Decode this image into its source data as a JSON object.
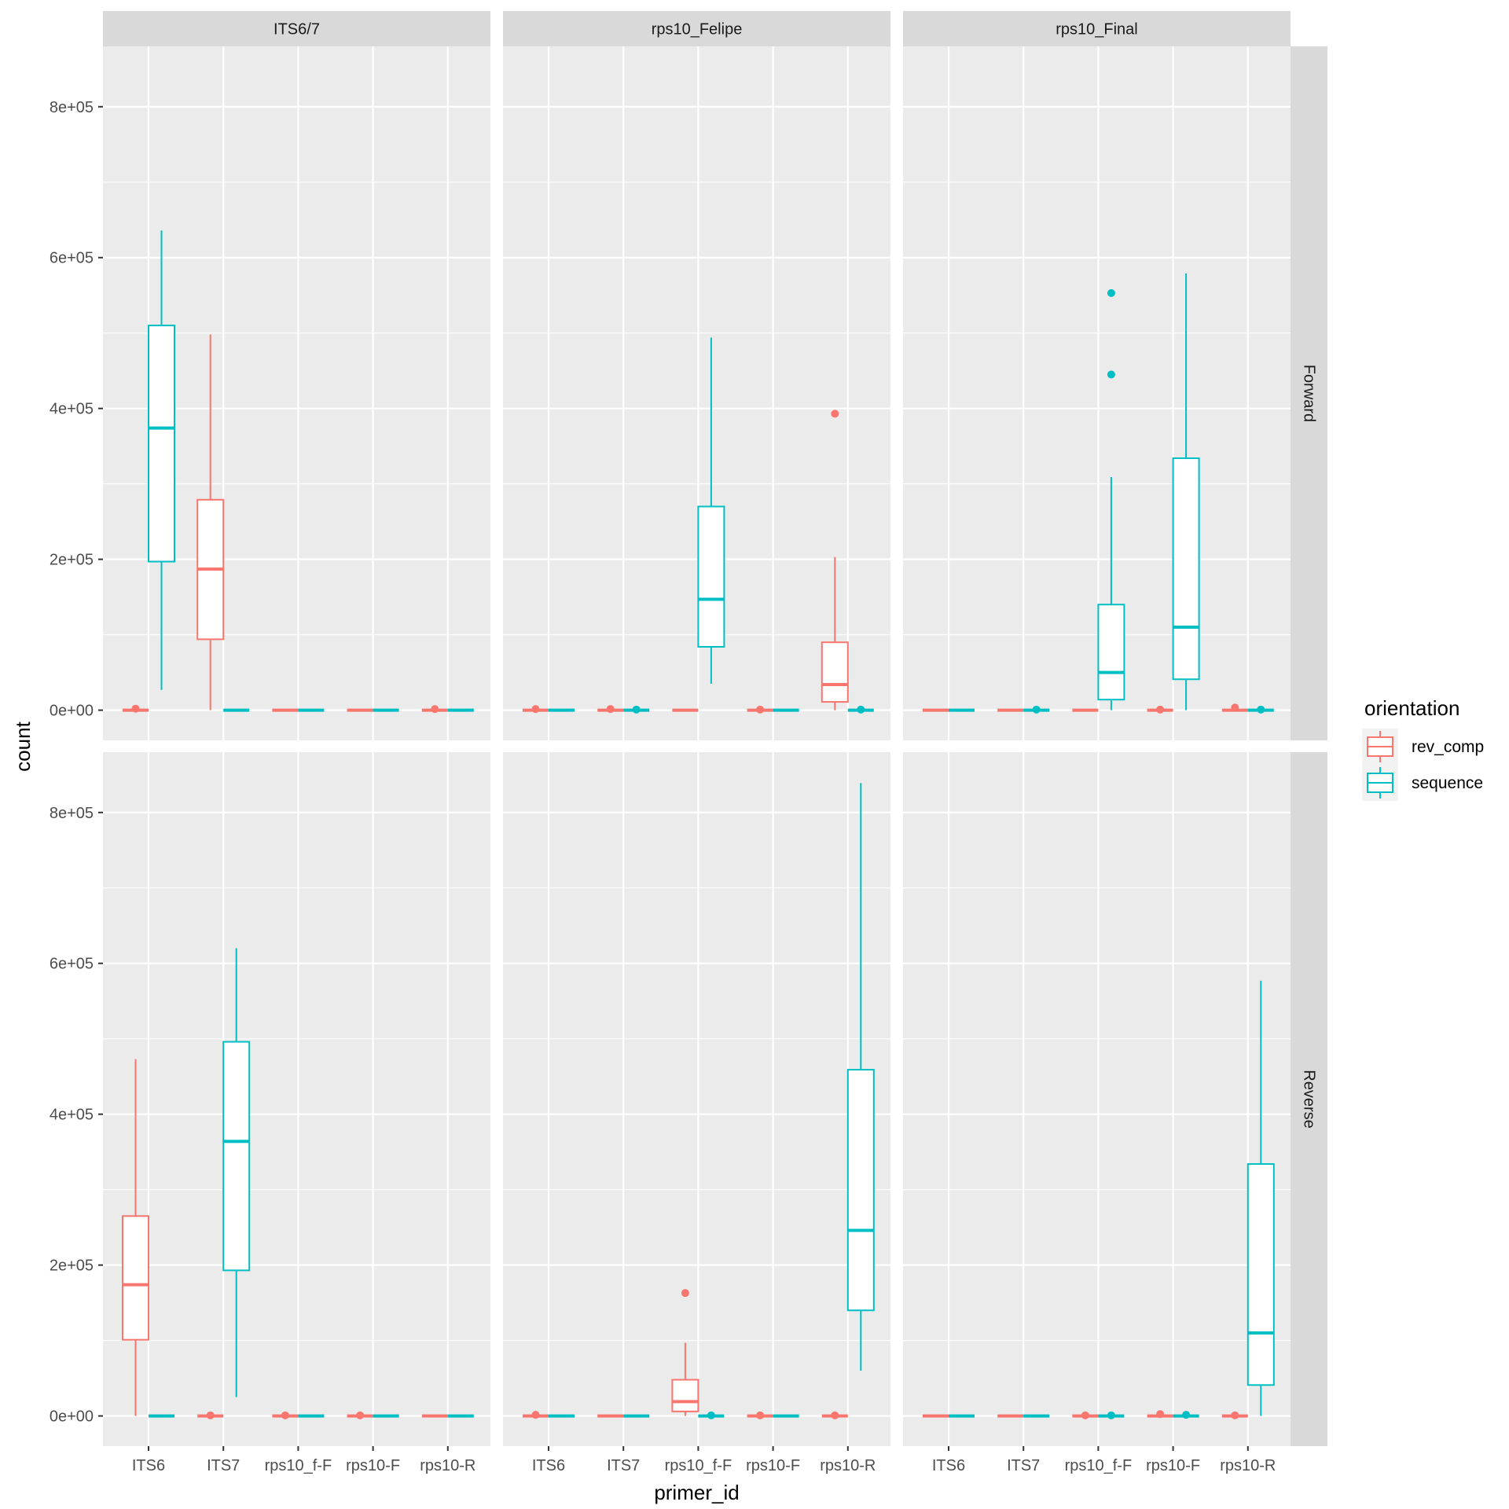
{
  "chart_data": {
    "type": "boxplot",
    "facet_columns": [
      "ITS6/7",
      "rps10_Felipe",
      "rps10_Final"
    ],
    "facet_rows": [
      "Forward",
      "Reverse"
    ],
    "categories": [
      "ITS6",
      "ITS7",
      "rps10_f-F",
      "rps10-F",
      "rps10-R"
    ],
    "xlabel": "primer_id",
    "ylabel": "count",
    "ylim": [
      -40000,
      880000
    ],
    "yticks": [
      0,
      200000,
      400000,
      600000,
      800000
    ],
    "ytick_labels": [
      "0e+00",
      "2e+05",
      "4e+05",
      "6e+05",
      "8e+05"
    ],
    "legend": {
      "title": "orientation",
      "position": "right",
      "entries": [
        {
          "label": "rev_comp",
          "color": "#F8766D"
        },
        {
          "label": "sequence",
          "color": "#00BFC4"
        }
      ]
    },
    "series_colors": {
      "rev_comp": "#F8766D",
      "sequence": "#00BFC4"
    },
    "panels": [
      {
        "col": "ITS6/7",
        "row": "Forward",
        "boxes": [
          {
            "category": "ITS6",
            "series": "rev_comp",
            "min": 0,
            "q1": 0,
            "median": 0,
            "q3": 0,
            "max": 0,
            "outliers": [
              2000
            ]
          },
          {
            "category": "ITS6",
            "series": "sequence",
            "min": 27000,
            "q1": 197000,
            "median": 374000,
            "q3": 510000,
            "max": 636000,
            "outliers": []
          },
          {
            "category": "ITS7",
            "series": "rev_comp",
            "min": 0,
            "q1": 94000,
            "median": 187000,
            "q3": 279000,
            "max": 498000,
            "outliers": []
          },
          {
            "category": "ITS7",
            "series": "sequence",
            "min": 0,
            "q1": 0,
            "median": 0,
            "q3": 0,
            "max": 0,
            "outliers": []
          },
          {
            "category": "rps10_f-F",
            "series": "rev_comp",
            "min": 0,
            "q1": 0,
            "median": 0,
            "q3": 0,
            "max": 0,
            "outliers": []
          },
          {
            "category": "rps10_f-F",
            "series": "sequence",
            "min": 0,
            "q1": 0,
            "median": 0,
            "q3": 0,
            "max": 0,
            "outliers": []
          },
          {
            "category": "rps10-F",
            "series": "rev_comp",
            "min": 0,
            "q1": 0,
            "median": 0,
            "q3": 0,
            "max": 0,
            "outliers": []
          },
          {
            "category": "rps10-F",
            "series": "sequence",
            "min": 0,
            "q1": 0,
            "median": 0,
            "q3": 0,
            "max": 0,
            "outliers": []
          },
          {
            "category": "rps10-R",
            "series": "rev_comp",
            "min": 0,
            "q1": 0,
            "median": 0,
            "q3": 0,
            "max": 0,
            "outliers": [
              1500
            ]
          },
          {
            "category": "rps10-R",
            "series": "sequence",
            "min": 0,
            "q1": 0,
            "median": 0,
            "q3": 0,
            "max": 0,
            "outliers": []
          }
        ]
      },
      {
        "col": "rps10_Felipe",
        "row": "Forward",
        "boxes": [
          {
            "category": "ITS6",
            "series": "rev_comp",
            "min": 0,
            "q1": 0,
            "median": 0,
            "q3": 0,
            "max": 0,
            "outliers": [
              1500
            ]
          },
          {
            "category": "ITS6",
            "series": "sequence",
            "min": 0,
            "q1": 0,
            "median": 0,
            "q3": 0,
            "max": 0,
            "outliers": []
          },
          {
            "category": "ITS7",
            "series": "rev_comp",
            "min": 0,
            "q1": 0,
            "median": 0,
            "q3": 0,
            "max": 0,
            "outliers": [
              1500
            ]
          },
          {
            "category": "ITS7",
            "series": "sequence",
            "min": 0,
            "q1": 0,
            "median": 0,
            "q3": 0,
            "max": 0,
            "outliers": [
              800
            ]
          },
          {
            "category": "rps10_f-F",
            "series": "rev_comp",
            "min": 0,
            "q1": 0,
            "median": 0,
            "q3": 0,
            "max": 0,
            "outliers": []
          },
          {
            "category": "rps10_f-F",
            "series": "sequence",
            "min": 35000,
            "q1": 84000,
            "median": 147000,
            "q3": 270000,
            "max": 494000,
            "outliers": []
          },
          {
            "category": "rps10-F",
            "series": "rev_comp",
            "min": 0,
            "q1": 0,
            "median": 0,
            "q3": 0,
            "max": 0,
            "outliers": [
              800
            ]
          },
          {
            "category": "rps10-F",
            "series": "sequence",
            "min": 0,
            "q1": 0,
            "median": 0,
            "q3": 0,
            "max": 0,
            "outliers": []
          },
          {
            "category": "rps10-R",
            "series": "rev_comp",
            "min": 0,
            "q1": 11000,
            "median": 34000,
            "q3": 90000,
            "max": 203000,
            "outliers": [
              393000
            ]
          },
          {
            "category": "rps10-R",
            "series": "sequence",
            "min": 0,
            "q1": 0,
            "median": 0,
            "q3": 0,
            "max": 0,
            "outliers": [
              800
            ]
          }
        ]
      },
      {
        "col": "rps10_Final",
        "row": "Forward",
        "boxes": [
          {
            "category": "ITS6",
            "series": "rev_comp",
            "min": 0,
            "q1": 0,
            "median": 0,
            "q3": 0,
            "max": 0,
            "outliers": []
          },
          {
            "category": "ITS6",
            "series": "sequence",
            "min": 0,
            "q1": 0,
            "median": 0,
            "q3": 0,
            "max": 0,
            "outliers": []
          },
          {
            "category": "ITS7",
            "series": "rev_comp",
            "min": 0,
            "q1": 0,
            "median": 0,
            "q3": 0,
            "max": 0,
            "outliers": []
          },
          {
            "category": "ITS7",
            "series": "sequence",
            "min": 0,
            "q1": 0,
            "median": 0,
            "q3": 0,
            "max": 0,
            "outliers": [
              800
            ]
          },
          {
            "category": "rps10_f-F",
            "series": "rev_comp",
            "min": 0,
            "q1": 0,
            "median": 0,
            "q3": 0,
            "max": 0,
            "outliers": []
          },
          {
            "category": "rps10_f-F",
            "series": "sequence",
            "min": 0,
            "q1": 14000,
            "median": 50000,
            "q3": 140000,
            "max": 309000,
            "outliers": [
              445000,
              553000
            ]
          },
          {
            "category": "rps10-F",
            "series": "rev_comp",
            "min": 0,
            "q1": 0,
            "median": 0,
            "q3": 0,
            "max": 0,
            "outliers": [
              800
            ]
          },
          {
            "category": "rps10-F",
            "series": "sequence",
            "min": 0,
            "q1": 41000,
            "median": 110000,
            "q3": 334000,
            "max": 579000,
            "outliers": []
          },
          {
            "category": "rps10-R",
            "series": "rev_comp",
            "min": 0,
            "q1": 0,
            "median": 0,
            "q3": 0,
            "max": 0,
            "outliers": [
              3500
            ]
          },
          {
            "category": "rps10-R",
            "series": "sequence",
            "min": 0,
            "q1": 0,
            "median": 0,
            "q3": 0,
            "max": 0,
            "outliers": [
              800
            ]
          }
        ]
      },
      {
        "col": "ITS6/7",
        "row": "Reverse",
        "boxes": [
          {
            "category": "ITS6",
            "series": "rev_comp",
            "min": 0,
            "q1": 101000,
            "median": 174000,
            "q3": 265000,
            "max": 473000,
            "outliers": []
          },
          {
            "category": "ITS6",
            "series": "sequence",
            "min": 0,
            "q1": 0,
            "median": 0,
            "q3": 0,
            "max": 0,
            "outliers": []
          },
          {
            "category": "ITS7",
            "series": "rev_comp",
            "min": 0,
            "q1": 0,
            "median": 0,
            "q3": 0,
            "max": 0,
            "outliers": [
              800
            ]
          },
          {
            "category": "ITS7",
            "series": "sequence",
            "min": 25000,
            "q1": 193000,
            "median": 364000,
            "q3": 496000,
            "max": 620000,
            "outliers": []
          },
          {
            "category": "rps10_f-F",
            "series": "rev_comp",
            "min": 0,
            "q1": 0,
            "median": 0,
            "q3": 0,
            "max": 0,
            "outliers": [
              800
            ]
          },
          {
            "category": "rps10_f-F",
            "series": "sequence",
            "min": 0,
            "q1": 0,
            "median": 0,
            "q3": 0,
            "max": 0,
            "outliers": []
          },
          {
            "category": "rps10-F",
            "series": "rev_comp",
            "min": 0,
            "q1": 0,
            "median": 0,
            "q3": 0,
            "max": 0,
            "outliers": [
              800
            ]
          },
          {
            "category": "rps10-F",
            "series": "sequence",
            "min": 0,
            "q1": 0,
            "median": 0,
            "q3": 0,
            "max": 0,
            "outliers": []
          },
          {
            "category": "rps10-R",
            "series": "rev_comp",
            "min": 0,
            "q1": 0,
            "median": 0,
            "q3": 0,
            "max": 0,
            "outliers": []
          },
          {
            "category": "rps10-R",
            "series": "sequence",
            "min": 0,
            "q1": 0,
            "median": 0,
            "q3": 0,
            "max": 0,
            "outliers": []
          }
        ]
      },
      {
        "col": "rps10_Felipe",
        "row": "Reverse",
        "boxes": [
          {
            "category": "ITS6",
            "series": "rev_comp",
            "min": 0,
            "q1": 0,
            "median": 0,
            "q3": 0,
            "max": 0,
            "outliers": [
              1500
            ]
          },
          {
            "category": "ITS6",
            "series": "sequence",
            "min": 0,
            "q1": 0,
            "median": 0,
            "q3": 0,
            "max": 0,
            "outliers": []
          },
          {
            "category": "ITS7",
            "series": "rev_comp",
            "min": 0,
            "q1": 0,
            "median": 0,
            "q3": 0,
            "max": 0,
            "outliers": []
          },
          {
            "category": "ITS7",
            "series": "sequence",
            "min": 0,
            "q1": 0,
            "median": 0,
            "q3": 0,
            "max": 0,
            "outliers": []
          },
          {
            "category": "rps10_f-F",
            "series": "rev_comp",
            "min": 0,
            "q1": 6000,
            "median": 19000,
            "q3": 48000,
            "max": 97000,
            "outliers": [
              163000
            ]
          },
          {
            "category": "rps10_f-F",
            "series": "sequence",
            "min": 0,
            "q1": 0,
            "median": 0,
            "q3": 0,
            "max": 0,
            "outliers": [
              800
            ]
          },
          {
            "category": "rps10-F",
            "series": "rev_comp",
            "min": 0,
            "q1": 0,
            "median": 0,
            "q3": 0,
            "max": 0,
            "outliers": [
              800
            ]
          },
          {
            "category": "rps10-F",
            "series": "sequence",
            "min": 0,
            "q1": 0,
            "median": 0,
            "q3": 0,
            "max": 0,
            "outliers": []
          },
          {
            "category": "rps10-R",
            "series": "rev_comp",
            "min": 0,
            "q1": 0,
            "median": 0,
            "q3": 0,
            "max": 0,
            "outliers": [
              800
            ]
          },
          {
            "category": "rps10-R",
            "series": "sequence",
            "min": 60000,
            "q1": 140000,
            "median": 246000,
            "q3": 459000,
            "max": 839000,
            "outliers": []
          }
        ]
      },
      {
        "col": "rps10_Final",
        "row": "Reverse",
        "boxes": [
          {
            "category": "ITS6",
            "series": "rev_comp",
            "min": 0,
            "q1": 0,
            "median": 0,
            "q3": 0,
            "max": 0,
            "outliers": []
          },
          {
            "category": "ITS6",
            "series": "sequence",
            "min": 0,
            "q1": 0,
            "median": 0,
            "q3": 0,
            "max": 0,
            "outliers": []
          },
          {
            "category": "ITS7",
            "series": "rev_comp",
            "min": 0,
            "q1": 0,
            "median": 0,
            "q3": 0,
            "max": 0,
            "outliers": []
          },
          {
            "category": "ITS7",
            "series": "sequence",
            "min": 0,
            "q1": 0,
            "median": 0,
            "q3": 0,
            "max": 0,
            "outliers": []
          },
          {
            "category": "rps10_f-F",
            "series": "rev_comp",
            "min": 0,
            "q1": 0,
            "median": 0,
            "q3": 0,
            "max": 0,
            "outliers": [
              800
            ]
          },
          {
            "category": "rps10_f-F",
            "series": "sequence",
            "min": 0,
            "q1": 0,
            "median": 0,
            "q3": 0,
            "max": 0,
            "outliers": [
              800
            ]
          },
          {
            "category": "rps10-F",
            "series": "rev_comp",
            "min": 0,
            "q1": 0,
            "median": 0,
            "q3": 0,
            "max": 0,
            "outliers": [
              2500
            ]
          },
          {
            "category": "rps10-F",
            "series": "sequence",
            "min": 0,
            "q1": 0,
            "median": 0,
            "q3": 0,
            "max": 0,
            "outliers": [
              1500
            ]
          },
          {
            "category": "rps10-R",
            "series": "rev_comp",
            "min": 0,
            "q1": 0,
            "median": 0,
            "q3": 0,
            "max": 0,
            "outliers": [
              800
            ]
          },
          {
            "category": "rps10-R",
            "series": "sequence",
            "min": 0,
            "q1": 41000,
            "median": 110000,
            "q3": 334000,
            "max": 577000,
            "outliers": []
          }
        ]
      }
    ]
  }
}
